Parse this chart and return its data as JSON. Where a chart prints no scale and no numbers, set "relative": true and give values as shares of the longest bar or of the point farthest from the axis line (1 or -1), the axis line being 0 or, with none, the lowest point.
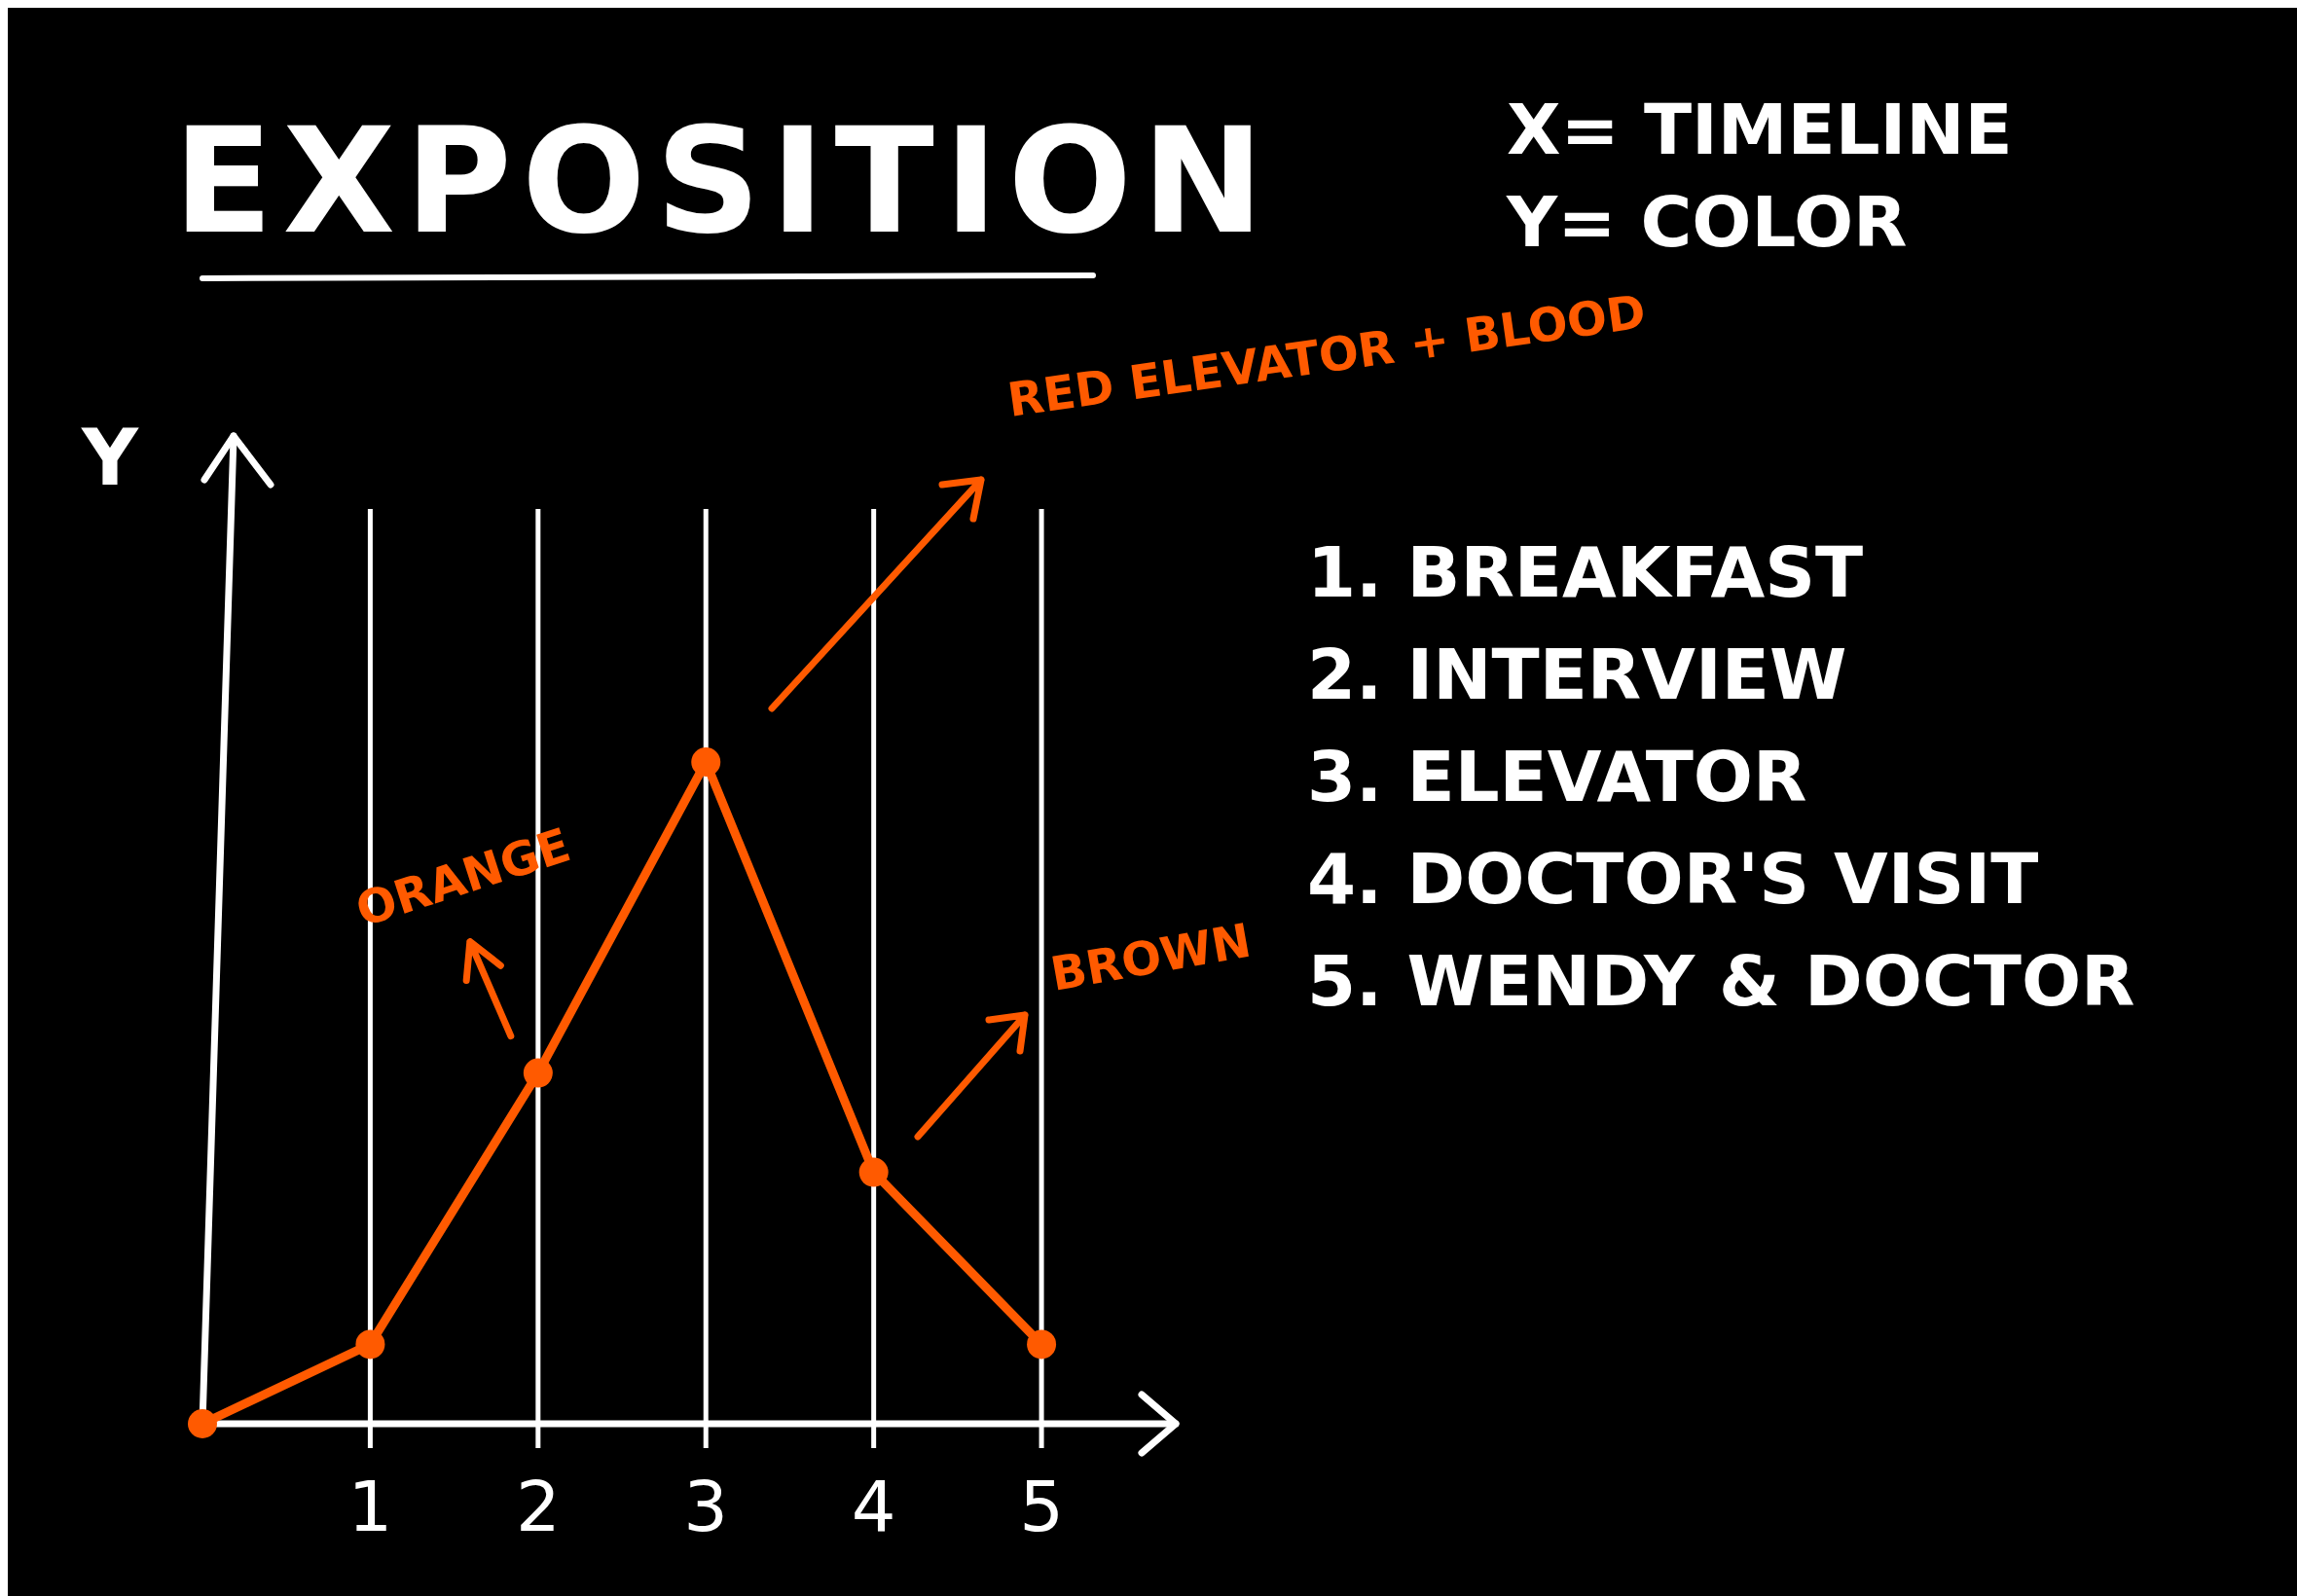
{
  "chart_data": {
    "type": "line",
    "title": "EXPOSITION",
    "ylabel": "Y",
    "relative": true,
    "xlim": [
      0,
      5.8
    ],
    "xticks": [
      1,
      2,
      3,
      4,
      5
    ],
    "grid": "x",
    "marker": "circle",
    "line_style": "solid",
    "series": [
      {
        "x": [
          0,
          1,
          2,
          3,
          4,
          5
        ],
        "values": [
          0,
          0.12,
          0.53,
          1,
          0.38,
          0.12
        ],
        "color": "#ff5a00"
      }
    ],
    "annotations": [
      "X= TIMELINE",
      "Y= COLOR",
      "1. BREAKFAST",
      "2. INTERVIEW",
      "3. ELEVATOR",
      "4. DOCTOR'S VISIT",
      "5. WENDY & DOCTOR",
      "RED ELEVATOR + BLOOD",
      "BROWN",
      {
        "text": "ORANGE",
        "x": 2,
        "y": 0.53
      }
    ]
  }
}
